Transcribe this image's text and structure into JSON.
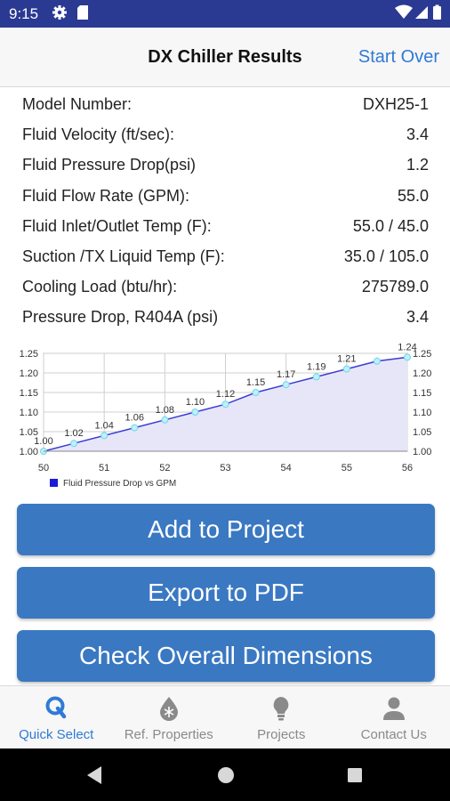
{
  "status_bar": {
    "time": "9:15"
  },
  "header": {
    "title": "DX Chiller Results",
    "start_over": "Start Over"
  },
  "results": [
    {
      "label": "Model Number:",
      "value": "DXH25-1"
    },
    {
      "label": "Fluid Velocity (ft/sec):",
      "value": "3.4"
    },
    {
      "label": "Fluid Pressure Drop(psi)",
      "value": "1.2"
    },
    {
      "label": "Fluid Flow Rate (GPM):",
      "value": "55.0"
    },
    {
      "label": "Fluid Inlet/Outlet Temp (F):",
      "value": "55.0 / 45.0"
    },
    {
      "label": "Suction /TX Liquid Temp (F):",
      "value": "35.0 / 105.0"
    },
    {
      "label": "Cooling Load (btu/hr):",
      "value": "275789.0"
    },
    {
      "label": "Pressure Drop, R404A (psi)",
      "value": "3.4"
    }
  ],
  "chart_data": {
    "type": "area",
    "series": [
      {
        "name": "Fluid Pressure Drop vs GPM",
        "x": [
          50,
          50.5,
          51,
          51.5,
          52,
          52.5,
          53,
          53.5,
          54,
          54.5,
          55,
          55.5,
          56
        ],
        "values": [
          1.0,
          1.02,
          1.04,
          1.06,
          1.08,
          1.1,
          1.12,
          1.15,
          1.17,
          1.19,
          1.21,
          1.23,
          1.24
        ],
        "labels": [
          "1.00",
          "1.02",
          "1.04",
          "1.06",
          "1.08",
          "1.10",
          "1.12",
          "1.15",
          "1.17",
          "1.19",
          "1.21",
          "",
          "1.24"
        ],
        "color": "#3b3bd6",
        "fill": "#e6e6f8"
      }
    ],
    "xlim": [
      50,
      56
    ],
    "ylim": [
      1.0,
      1.25
    ],
    "xticks": [
      "50",
      "51",
      "52",
      "53",
      "54",
      "55",
      "56"
    ],
    "yticks": [
      "1.00",
      "1.05",
      "1.10",
      "1.15",
      "1.20",
      "1.25"
    ],
    "grid": true,
    "legend_position": "bottom-left"
  },
  "buttons": {
    "add_to_project": "Add to Project",
    "export_pdf": "Export to PDF",
    "check_dimensions": "Check Overall Dimensions"
  },
  "tabs": [
    {
      "label": "Quick Select",
      "icon": "quick-select-icon",
      "active": true
    },
    {
      "label": "Ref. Properties",
      "icon": "snowflake-drop-icon",
      "active": false
    },
    {
      "label": "Projects",
      "icon": "lightbulb-icon",
      "active": false
    },
    {
      "label": "Contact Us",
      "icon": "person-icon",
      "active": false
    }
  ],
  "colors": {
    "status_bar": "#2a3a93",
    "accent": "#2f7ad6",
    "button": "#3a78c2"
  }
}
